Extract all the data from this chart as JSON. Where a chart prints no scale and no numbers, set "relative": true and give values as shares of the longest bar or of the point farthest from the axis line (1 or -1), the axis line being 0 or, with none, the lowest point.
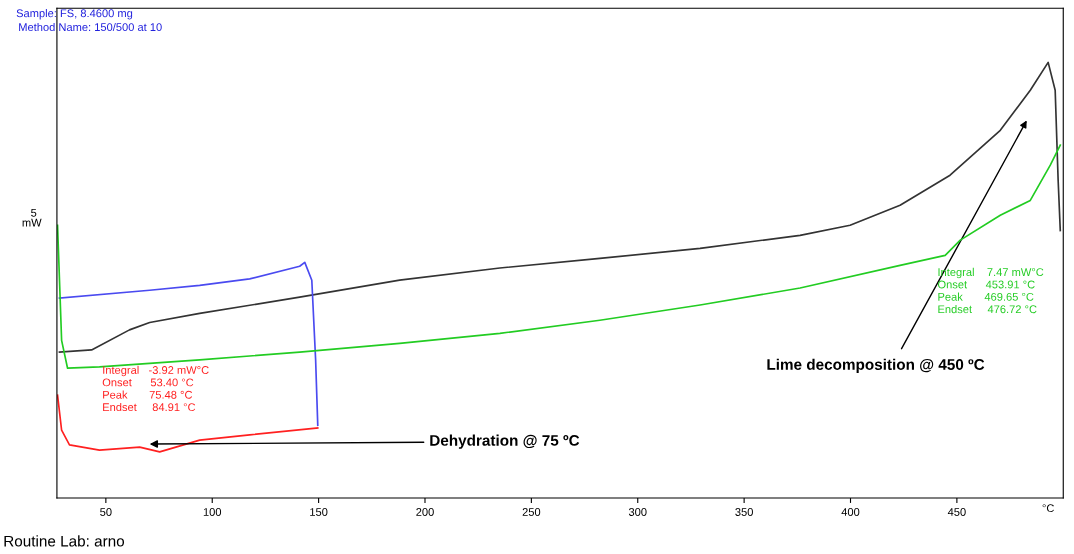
{
  "chart_data": {
    "type": "line",
    "relative": true,
    "ylabel": "mW",
    "xlabel": "°C",
    "xlim": [
      27,
      500
    ],
    "xticks": [
      50,
      100,
      150,
      200,
      250,
      300,
      350,
      400,
      450
    ],
    "grid": false,
    "series": [
      {
        "color": "#333333",
        "x": [
          28.2,
          43.3,
          61.1,
          70.6,
          94.1,
          141.1,
          188.1,
          235.2,
          282.2,
          329.3,
          376.3,
          399.8,
          423.3,
          446.8,
          470.4,
          484.5,
          492.9,
          496.2,
          497.6,
          498.6
        ],
        "values": [
          0.335,
          0.34,
          0.386,
          0.403,
          0.424,
          0.461,
          0.5,
          0.528,
          0.55,
          0.573,
          0.603,
          0.626,
          0.672,
          0.741,
          0.844,
          0.936,
          1.0,
          0.936,
          0.729,
          0.614
        ]
      },
      {
        "color": "#4a4af0",
        "x": [
          28.2,
          70.6,
          94.1,
          117.6,
          141.1,
          143.5,
          146.8,
          148.6,
          149.6
        ],
        "values": [
          0.459,
          0.477,
          0.488,
          0.503,
          0.532,
          0.541,
          0.5,
          0.317,
          0.167
        ]
      },
      {
        "color": "#22cc22",
        "x": [
          27.3,
          29.2,
          32.0,
          47.0,
          94.1,
          141.1,
          188.1,
          235.2,
          282.2,
          329.3,
          376.3,
          423.3,
          444.5,
          451.6,
          470.4,
          484.5,
          493.9,
          498.6
        ],
        "values": [
          0.626,
          0.362,
          0.298,
          0.301,
          0.317,
          0.335,
          0.355,
          0.378,
          0.408,
          0.443,
          0.482,
          0.534,
          0.557,
          0.592,
          0.649,
          0.683,
          0.764,
          0.81
        ]
      },
      {
        "color": "#ff2020",
        "x": [
          27.3,
          29.2,
          32.9,
          47.0,
          65.9,
          75.3,
          94.1,
          117.6,
          149.6
        ],
        "values": [
          0.236,
          0.156,
          0.122,
          0.11,
          0.117,
          0.106,
          0.133,
          0.145,
          0.161
        ]
      }
    ],
    "annotations": [
      "Sample: FS, 8.4600 mg",
      "Method Name: 150/500 at 10",
      "5",
      "Integral   -3.92 mW°C\nOnset      53.40 °C\nPeak       75.48 °C\nEndset     84.91 °C",
      "Integral    7.47 mW°C\nOnset      453.91 °C\nPeak       469.65 °C\nEndset     476.72 °C",
      "Routine Lab: arno",
      "Lime decomposition @ 450 ºC",
      {
        "text": "Dehydration @ 75 ºC",
        "x": 70.6,
        "y": 0.124
      }
    ]
  }
}
